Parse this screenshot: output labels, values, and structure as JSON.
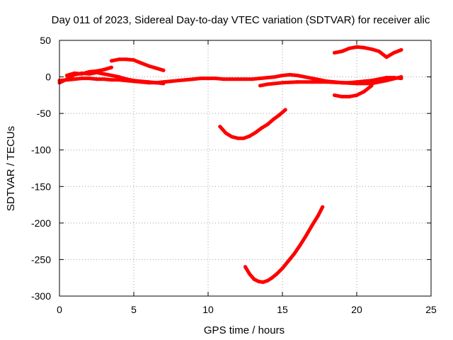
{
  "chart_data": {
    "type": "scatter",
    "title": "Day 011 of 2023, Sidereal Day-to-day VTEC variation (SDTVAR) for receiver alic",
    "xlabel": "GPS time / hours",
    "ylabel": "SDTVAR / TECUs",
    "xlim": [
      0,
      25
    ],
    "ylim": [
      -300,
      50
    ],
    "xticks": [
      0,
      5,
      10,
      15,
      20,
      25
    ],
    "yticks": [
      50,
      0,
      -50,
      -100,
      -150,
      -200,
      -250,
      -300
    ],
    "grid": true,
    "series_color": "#ff0000",
    "series": [
      {
        "x": [
          0,
          0.5,
          1,
          1.5,
          2,
          2.5,
          3,
          3.5,
          4,
          4.5,
          5,
          5.5,
          6,
          6.5,
          7,
          7.5,
          8,
          8.5,
          9,
          9.5,
          10,
          10.5,
          11,
          11.5,
          12,
          12.5,
          13,
          13.5,
          14,
          14.5,
          15,
          15.5,
          16,
          16.5,
          17,
          17.5,
          18,
          18.5,
          19,
          19.5,
          20,
          20.5,
          21,
          21.5,
          22,
          22.5,
          23
        ],
        "y": [
          -5,
          -4,
          -3,
          -2,
          -2,
          -3,
          -3,
          -4,
          -4,
          -5,
          -6,
          -7,
          -8,
          -8,
          -7,
          -6,
          -5,
          -4,
          -3,
          -2,
          -2,
          -2,
          -3,
          -3,
          -3,
          -3,
          -3,
          -2,
          -1,
          0,
          2,
          3,
          2,
          0,
          -2,
          -4,
          -6,
          -7,
          -8,
          -8,
          -7,
          -6,
          -5,
          -3,
          -1,
          -1,
          -2
        ]
      },
      {
        "x": [
          0,
          0.5,
          1,
          1.5,
          2,
          2.5,
          3,
          3.5,
          4,
          4.5,
          5,
          5.5,
          6,
          6.5,
          7
        ],
        "y": [
          -8,
          -3,
          3,
          5,
          4,
          6,
          4,
          2,
          0,
          -3,
          -5,
          -6,
          -7,
          -8,
          -9
        ]
      },
      {
        "x": [
          0.5,
          1,
          1.5,
          2,
          2.5,
          3,
          3.5
        ],
        "y": [
          2,
          5,
          4,
          7,
          8,
          10,
          13
        ]
      },
      {
        "x": [
          3.5,
          4,
          4.5,
          5,
          5.5,
          6,
          6.5,
          7
        ],
        "y": [
          22,
          24,
          24,
          23,
          19,
          15,
          12,
          9
        ]
      },
      {
        "x": [
          13.5,
          14,
          15,
          16,
          17,
          18,
          19,
          20,
          21,
          22,
          23
        ],
        "y": [
          -12,
          -10,
          -8,
          -7,
          -7,
          -7,
          -8,
          -9,
          -9,
          -5,
          0
        ]
      },
      {
        "x": [
          18.5,
          19,
          19.5,
          20,
          20.5,
          21
        ],
        "y": [
          -25,
          -27,
          -27,
          -25,
          -20,
          -12
        ]
      },
      {
        "x": [
          18.5,
          19,
          19.5,
          20,
          20.5,
          21,
          21.5,
          22,
          22.5,
          23
        ],
        "y": [
          33,
          35,
          39,
          41,
          40,
          38,
          35,
          27,
          33,
          37
        ]
      },
      {
        "x": [
          10.8,
          11.2,
          11.6,
          12,
          12.4,
          12.8,
          13.2,
          13.6,
          14,
          14.4,
          14.8,
          15.2
        ],
        "y": [
          -68,
          -77,
          -82,
          -84,
          -84,
          -81,
          -76,
          -70,
          -65,
          -58,
          -52,
          -45
        ]
      },
      {
        "x": [
          12.5,
          12.8,
          13.1,
          13.4,
          13.7,
          14,
          14.3,
          14.6,
          15,
          15.4,
          15.8,
          16.2,
          16.6,
          17,
          17.4,
          17.7
        ],
        "y": [
          -260,
          -270,
          -277,
          -280,
          -281,
          -279,
          -275,
          -270,
          -262,
          -252,
          -242,
          -230,
          -217,
          -203,
          -190,
          -178
        ]
      }
    ]
  }
}
